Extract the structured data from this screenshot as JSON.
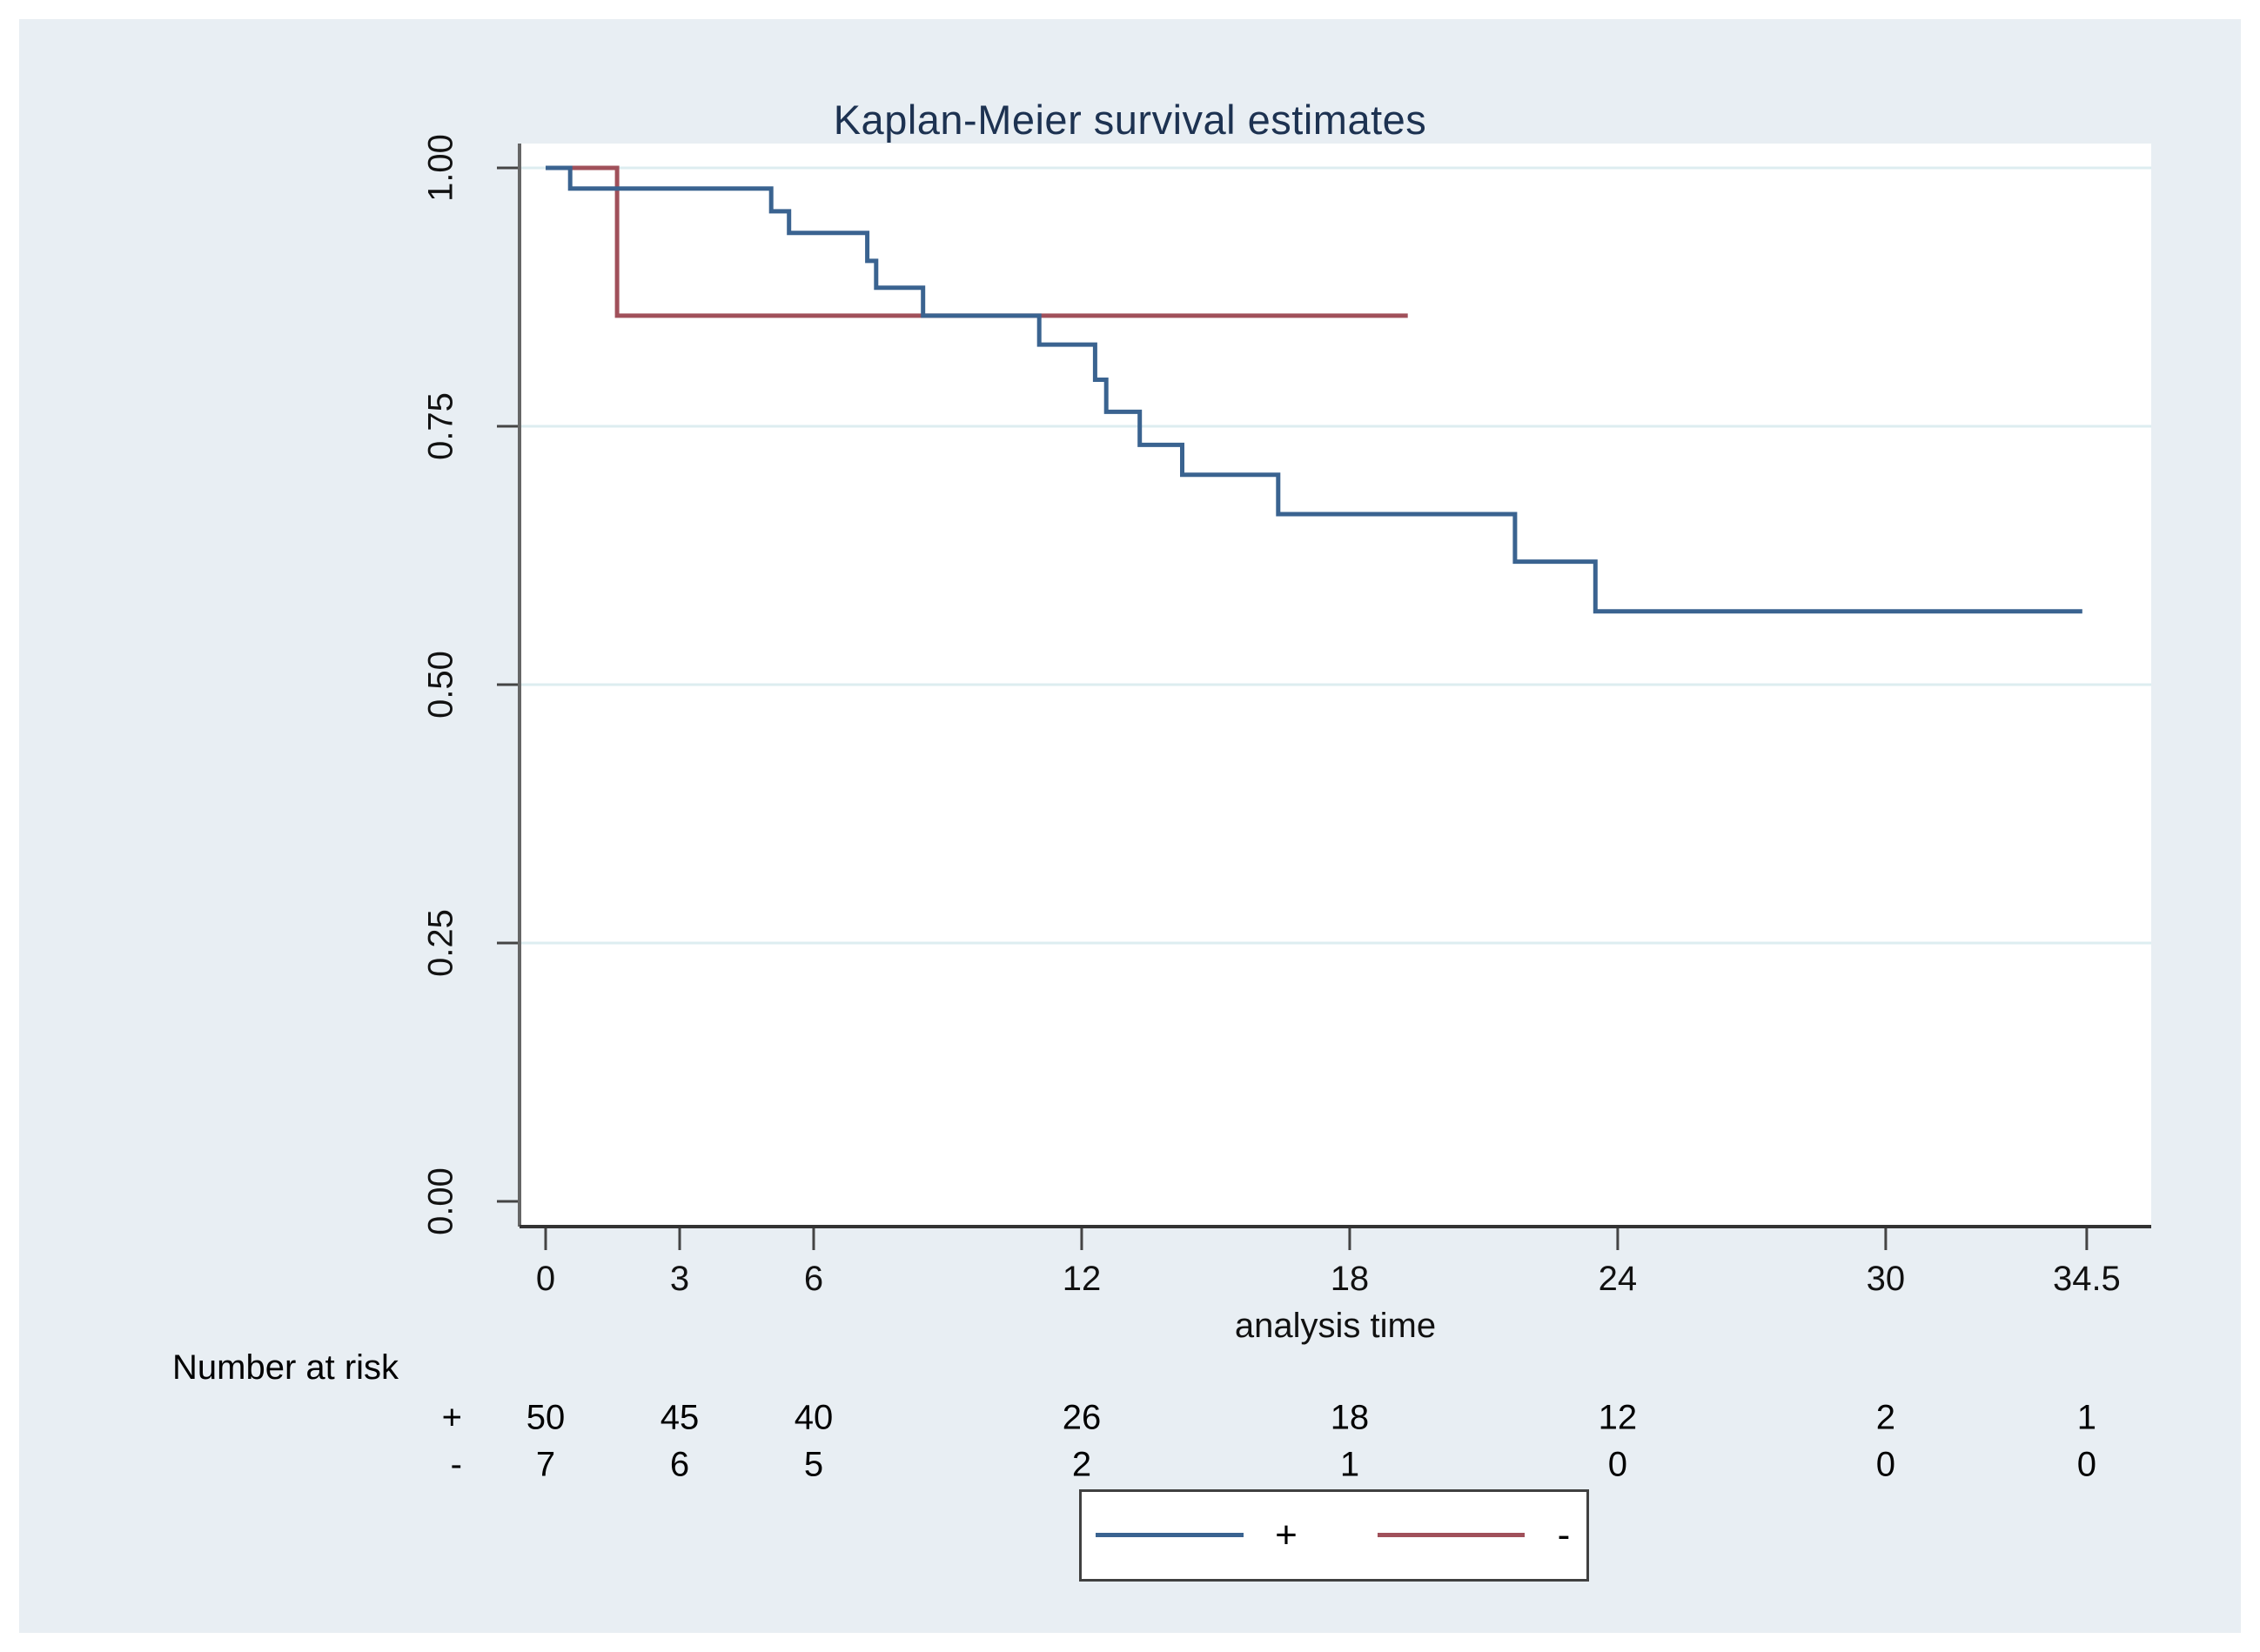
{
  "title": "Kaplan-Meier survival estimates",
  "colors": {
    "figure_background": "#e8eef3",
    "plot_background": "#ffffff",
    "gridline": "#ddedf0",
    "x_axis_line": "#333333",
    "y_axis_line": "#666666",
    "title_text": "#1d3251",
    "tick_text": "#111111",
    "series_plus": "#3a6390",
    "series_minus": "#a0505a",
    "legend_border": "#404040"
  },
  "chart_data": {
    "type": "line",
    "subtype": "kaplan-meier-step",
    "title": "Kaplan-Meier survival estimates",
    "xlabel": "analysis time",
    "ylabel": "",
    "xlim": [
      0,
      36
    ],
    "ylim": [
      0.0,
      1.0
    ],
    "xticks": [
      0,
      3,
      6,
      12,
      18,
      24,
      30,
      34.5
    ],
    "xtick_labels": [
      "0",
      "3",
      "6",
      "12",
      "18",
      "24",
      "30",
      "34.5"
    ],
    "yticks": [
      0.0,
      0.25,
      0.5,
      0.75,
      1.0
    ],
    "ytick_labels": [
      "0.00",
      "0.25",
      "0.50",
      "0.75",
      "1.00"
    ],
    "grid": "horizontal-only",
    "legend_position": "bottom-center",
    "series": [
      {
        "name": "+",
        "color": "#3a6390",
        "steps": [
          [
            0,
            1.0
          ],
          [
            0.55,
            0.98
          ],
          [
            5.05,
            0.958
          ],
          [
            5.45,
            0.937
          ],
          [
            7.2,
            0.91
          ],
          [
            7.4,
            0.884
          ],
          [
            8.45,
            0.857
          ],
          [
            11.05,
            0.829
          ],
          [
            12.3,
            0.795
          ],
          [
            12.55,
            0.764
          ],
          [
            13.3,
            0.732
          ],
          [
            14.25,
            0.703
          ],
          [
            16.4,
            0.665
          ],
          [
            21.7,
            0.619
          ],
          [
            23.5,
            0.571
          ]
        ],
        "end_time": 34.4,
        "final_value": 0.571
      },
      {
        "name": "-",
        "color": "#a0505a",
        "steps": [
          [
            0,
            1.0
          ],
          [
            1.6,
            0.857
          ]
        ],
        "end_time": 19.3,
        "final_value": 0.857
      }
    ],
    "at_risk_table": {
      "label": "Number at risk",
      "times": [
        0,
        3,
        6,
        12,
        18,
        24,
        30,
        34.5
      ],
      "rows": [
        {
          "name": "+",
          "counts": [
            "50",
            "45",
            "40",
            "26",
            "18",
            "12",
            "2",
            "1"
          ]
        },
        {
          "name": "-",
          "counts": [
            "7",
            "6",
            "5",
            "2",
            "1",
            "0",
            "0",
            "0"
          ]
        }
      ]
    }
  },
  "legend": {
    "items": [
      {
        "label": "+",
        "color": "#3a6390"
      },
      {
        "label": "-",
        "color": "#a0505a"
      }
    ]
  }
}
